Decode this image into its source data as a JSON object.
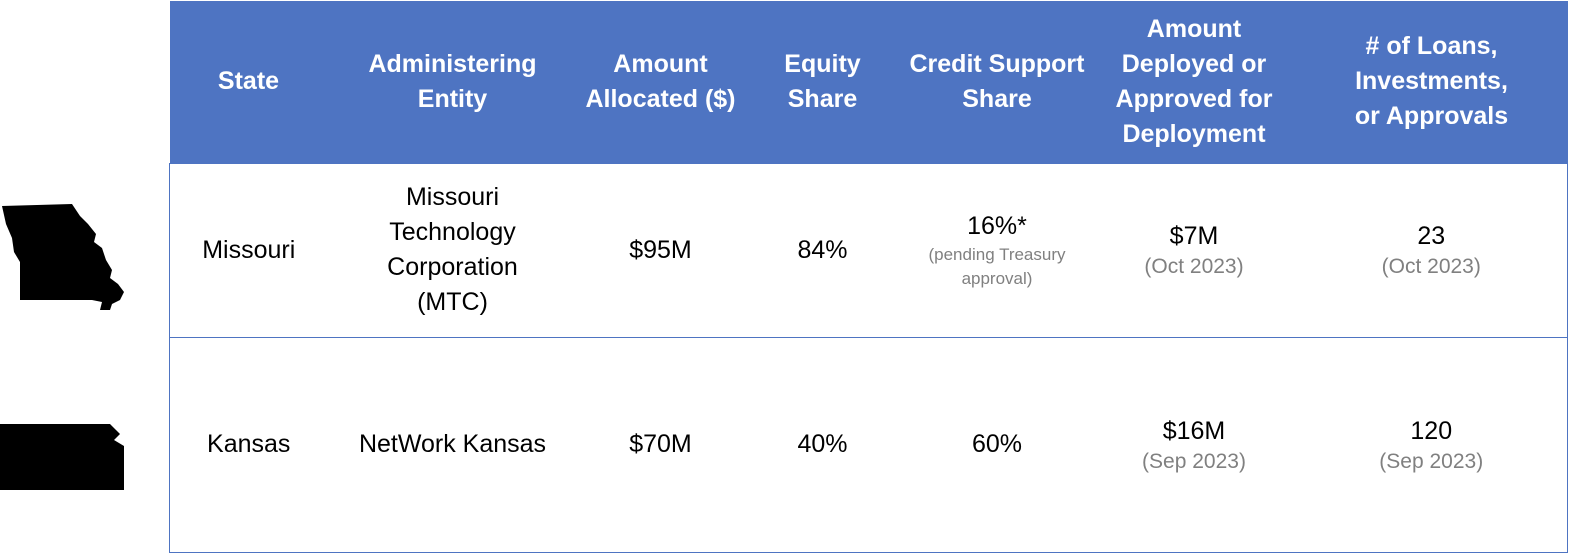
{
  "headers": {
    "state": "State",
    "entity_line1": "Administering",
    "entity_line2": "Entity",
    "allocated_line1": "Amount",
    "allocated_line2": "Allocated ($)",
    "equity_line1": "Equity",
    "equity_line2": "Share",
    "credit_line1": "Credit Support",
    "credit_line2": "Share",
    "deployed_line1": "Amount",
    "deployed_line2": "Deployed or",
    "deployed_line3": "Approved for",
    "deployed_line4": "Deployment",
    "loans_line1": "# of Loans,",
    "loans_line2": "Investments,",
    "loans_line3": "or Approvals"
  },
  "rows": [
    {
      "icon": "missouri-state-silhouette-icon",
      "state": "Missouri",
      "entity_lines": [
        "Missouri",
        "Technology",
        "Corporation",
        "(MTC)"
      ],
      "allocated": "$95M",
      "equity": "84%",
      "credit": "16%*",
      "credit_note_line1": "(pending Treasury",
      "credit_note_line2": "approval)",
      "deployed": "$7M",
      "deployed_date": "(Oct 2023)",
      "loans": "23",
      "loans_date": "(Oct 2023)"
    },
    {
      "icon": "kansas-state-silhouette-icon",
      "state": "Kansas",
      "entity_lines": [
        "NetWork Kansas"
      ],
      "allocated": "$70M",
      "equity": "40%",
      "credit": "60%",
      "deployed": "$16M",
      "deployed_date": "(Sep 2023)",
      "loans": "120",
      "loans_date": "(Sep 2023)"
    }
  ],
  "colors": {
    "header_bg": "#4e74c2",
    "header_text": "#ffffff",
    "muted_text": "#808080"
  }
}
